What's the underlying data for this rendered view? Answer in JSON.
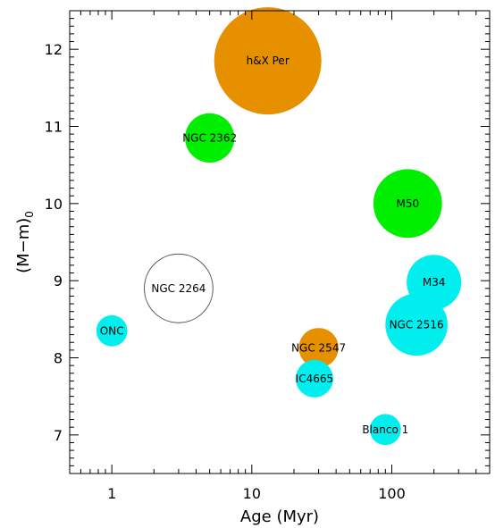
{
  "chart_data": {
    "type": "scatter",
    "xscale": "log",
    "xlim": [
      0.5,
      500
    ],
    "ylim": [
      6.5,
      12.5
    ],
    "xlabel": "Age (Myr)",
    "ylabel": "(M−m)",
    "ylabel_sub": "0",
    "xticks": [
      1,
      10,
      100
    ],
    "yticks": [
      7,
      8,
      9,
      10,
      11,
      12
    ],
    "colors": {
      "orange": "#e69000",
      "green": "#00ee00",
      "cyan": "#00eeee",
      "open": "#ffffff"
    },
    "points": [
      {
        "name": "h&X Per",
        "x": 13,
        "y": 11.85,
        "color": "orange",
        "size": 1.0
      },
      {
        "name": "NGC 2362",
        "x": 5,
        "y": 10.85,
        "color": "green",
        "size": 0.46
      },
      {
        "name": "M50",
        "x": 130,
        "y": 10.0,
        "color": "green",
        "size": 0.64
      },
      {
        "name": "NGC 2264",
        "x": 3,
        "y": 8.9,
        "color": "open",
        "size": 0.64
      },
      {
        "name": "M34",
        "x": 200,
        "y": 8.98,
        "color": "cyan",
        "size": 0.51
      },
      {
        "name": "NGC 2516",
        "x": 150,
        "y": 8.43,
        "color": "cyan",
        "size": 0.58
      },
      {
        "name": "ONC",
        "x": 1,
        "y": 8.35,
        "color": "cyan",
        "size": 0.29
      },
      {
        "name": "NGC 2547",
        "x": 30,
        "y": 8.13,
        "color": "orange",
        "size": 0.37
      },
      {
        "name": "IC4665",
        "x": 28,
        "y": 7.73,
        "color": "cyan",
        "size": 0.35
      },
      {
        "name": "Blanco 1",
        "x": 90,
        "y": 7.07,
        "color": "cyan",
        "size": 0.29
      }
    ]
  }
}
